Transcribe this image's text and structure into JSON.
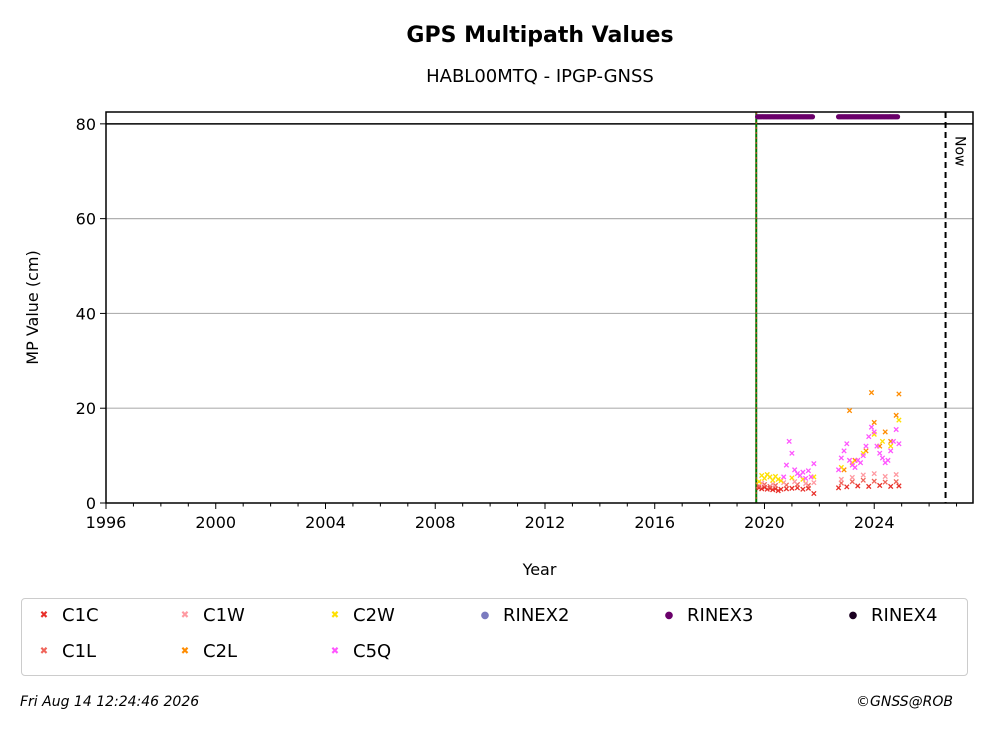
{
  "chart_data": {
    "type": "scatter",
    "title": "GPS Multipath Values",
    "subtitle": "HABL00MTQ - IPGP-GNSS",
    "xlabel": "Year",
    "ylabel": "MP Value (cm)",
    "xlim": [
      1996,
      2027.6
    ],
    "ylim": [
      0,
      82.5
    ],
    "xticks": [
      1996,
      2000,
      2004,
      2008,
      2012,
      2016,
      2020,
      2024
    ],
    "yticks": [
      0,
      20,
      40,
      60,
      80
    ],
    "grid": "y",
    "reference_line_y": 80,
    "install_line_x": 2019.7,
    "now_x": 2026.6,
    "now_label": "Now",
    "legend_position": "bottom",
    "series": [
      {
        "name": "C1C",
        "color": "#e8302a",
        "marker": "x",
        "points": [
          [
            2019.8,
            3.2
          ],
          [
            2019.9,
            3.0
          ],
          [
            2020.0,
            3.3
          ],
          [
            2020.1,
            2.9
          ],
          [
            2020.2,
            3.1
          ],
          [
            2020.3,
            2.8
          ],
          [
            2020.4,
            3.0
          ],
          [
            2020.5,
            2.6
          ],
          [
            2020.6,
            2.9
          ],
          [
            2020.8,
            3.0
          ],
          [
            2021.0,
            3.1
          ],
          [
            2021.2,
            3.2
          ],
          [
            2021.4,
            2.9
          ],
          [
            2021.6,
            3.1
          ],
          [
            2021.8,
            2.0
          ],
          [
            2022.7,
            3.2
          ],
          [
            2023.0,
            3.4
          ],
          [
            2023.4,
            3.6
          ],
          [
            2023.8,
            3.5
          ],
          [
            2024.2,
            3.7
          ],
          [
            2024.6,
            3.5
          ],
          [
            2024.9,
            3.6
          ]
        ]
      },
      {
        "name": "C1L",
        "color": "#f0645a",
        "marker": "x",
        "points": [
          [
            2019.8,
            3.6
          ],
          [
            2020.0,
            3.9
          ],
          [
            2020.2,
            3.5
          ],
          [
            2020.4,
            3.7
          ],
          [
            2020.8,
            3.8
          ],
          [
            2021.2,
            3.9
          ],
          [
            2021.6,
            3.7
          ],
          [
            2022.8,
            4.2
          ],
          [
            2023.2,
            4.5
          ],
          [
            2023.6,
            4.8
          ],
          [
            2024.0,
            4.6
          ],
          [
            2024.4,
            4.4
          ],
          [
            2024.8,
            4.5
          ]
        ]
      },
      {
        "name": "C1W",
        "color": "#ff9aa2",
        "marker": "x",
        "points": [
          [
            2019.9,
            4.2
          ],
          [
            2020.3,
            4.0
          ],
          [
            2020.7,
            4.3
          ],
          [
            2021.1,
            4.5
          ],
          [
            2021.5,
            4.1
          ],
          [
            2021.8,
            4.3
          ],
          [
            2022.8,
            5.0
          ],
          [
            2023.2,
            5.4
          ],
          [
            2023.6,
            5.9
          ],
          [
            2024.0,
            6.2
          ],
          [
            2024.4,
            5.6
          ],
          [
            2024.8,
            6.0
          ]
        ]
      },
      {
        "name": "C2L",
        "color": "#ff8c00",
        "marker": "x",
        "points": [
          [
            2022.9,
            7.0
          ],
          [
            2023.1,
            19.5
          ],
          [
            2023.3,
            9.0
          ],
          [
            2023.7,
            11.0
          ],
          [
            2023.9,
            23.3
          ],
          [
            2024.0,
            17.0
          ],
          [
            2024.2,
            12.0
          ],
          [
            2024.4,
            15.0
          ],
          [
            2024.6,
            13.0
          ],
          [
            2024.8,
            18.5
          ],
          [
            2024.9,
            23.0
          ]
        ]
      },
      {
        "name": "C2W",
        "color": "#ffe000",
        "marker": "x",
        "points": [
          [
            2019.8,
            4.5
          ],
          [
            2019.9,
            5.8
          ],
          [
            2020.0,
            5.2
          ],
          [
            2020.1,
            6.0
          ],
          [
            2020.2,
            5.5
          ],
          [
            2020.3,
            4.8
          ],
          [
            2020.4,
            5.6
          ],
          [
            2020.5,
            5.0
          ],
          [
            2020.6,
            4.7
          ],
          [
            2021.0,
            5.3
          ],
          [
            2021.4,
            5.0
          ],
          [
            2021.8,
            5.5
          ],
          [
            2022.8,
            7.5
          ],
          [
            2023.2,
            8.5
          ],
          [
            2023.6,
            10.5
          ],
          [
            2024.0,
            14.5
          ],
          [
            2024.3,
            13.0
          ],
          [
            2024.6,
            12.0
          ],
          [
            2024.9,
            17.5
          ]
        ]
      },
      {
        "name": "C5Q",
        "color": "#ff55ff",
        "marker": "x",
        "points": [
          [
            2020.7,
            5.5
          ],
          [
            2020.8,
            8.0
          ],
          [
            2020.9,
            13.0
          ],
          [
            2021.0,
            10.5
          ],
          [
            2021.1,
            7.0
          ],
          [
            2021.2,
            6.2
          ],
          [
            2021.3,
            5.8
          ],
          [
            2021.4,
            6.5
          ],
          [
            2021.5,
            5.2
          ],
          [
            2021.6,
            6.8
          ],
          [
            2021.7,
            5.5
          ],
          [
            2021.8,
            8.3
          ],
          [
            2022.7,
            7.0
          ],
          [
            2022.8,
            9.5
          ],
          [
            2022.9,
            11.0
          ],
          [
            2023.0,
            12.5
          ],
          [
            2023.1,
            9.0
          ],
          [
            2023.2,
            8.0
          ],
          [
            2023.3,
            7.5
          ],
          [
            2023.4,
            9.0
          ],
          [
            2023.5,
            8.5
          ],
          [
            2023.6,
            10.0
          ],
          [
            2023.7,
            12.0
          ],
          [
            2023.8,
            14.0
          ],
          [
            2023.9,
            16.0
          ],
          [
            2024.0,
            15.0
          ],
          [
            2024.1,
            12.0
          ],
          [
            2024.2,
            10.5
          ],
          [
            2024.3,
            9.5
          ],
          [
            2024.4,
            8.5
          ],
          [
            2024.5,
            9.0
          ],
          [
            2024.6,
            11.0
          ],
          [
            2024.7,
            13.0
          ],
          [
            2024.8,
            15.5
          ],
          [
            2024.9,
            12.5
          ]
        ]
      },
      {
        "name": "RINEX2",
        "color": "#7b7bbf",
        "marker": "dot",
        "points": []
      },
      {
        "name": "RINEX3",
        "color": "#6a006a",
        "marker": "dot",
        "segments": [
          [
            2019.75,
            2021.75
          ],
          [
            2022.7,
            2024.85
          ]
        ],
        "y": 81.5
      },
      {
        "name": "RINEX4",
        "color": "#1a0020",
        "marker": "dot",
        "points": []
      }
    ],
    "legend": [
      "C1C",
      "C1W",
      "C2W",
      "RINEX2",
      "RINEX3",
      "RINEX4",
      "C1L",
      "C2L",
      "C5Q"
    ]
  },
  "footer": {
    "timestamp": "Fri Aug 14 12:24:46 2026",
    "credit": "©GNSS@ROB"
  },
  "colors": {
    "install_line": "#007a00",
    "install_line_dash": "#e8302a",
    "grid": "#b0b0b0"
  }
}
